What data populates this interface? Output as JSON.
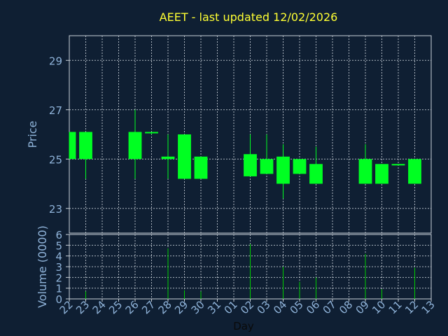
{
  "chart_data": [
    {
      "type": "candlestick",
      "title": "AEET - last updated 12/02/2026",
      "ylabel": "Price",
      "ylim": [
        22,
        30
      ],
      "yticks": [
        23,
        25,
        27,
        29
      ],
      "categories": [
        "22",
        "23",
        "24",
        "25",
        "26",
        "27",
        "28",
        "29",
        "30",
        "31",
        "01",
        "02",
        "03",
        "04",
        "05",
        "06",
        "07",
        "08",
        "09",
        "10",
        "11",
        "12",
        "13"
      ],
      "candles": [
        {
          "day": "22",
          "open": 25.0,
          "high": 26.1,
          "low": 25.0,
          "close": 26.1
        },
        {
          "day": "23",
          "open": 25.0,
          "high": 26.1,
          "low": 24.2,
          "close": 26.1
        },
        {
          "day": "26",
          "open": 25.0,
          "high": 27.0,
          "low": 24.2,
          "close": 26.1
        },
        {
          "day": "27",
          "open": 26.1,
          "high": 26.1,
          "low": 26.0,
          "close": 26.05
        },
        {
          "day": "28",
          "open": 25.0,
          "high": 26.0,
          "low": 24.2,
          "close": 25.1
        },
        {
          "day": "29",
          "open": 24.2,
          "high": 26.0,
          "low": 24.2,
          "close": 26.0
        },
        {
          "day": "30",
          "open": 24.2,
          "high": 25.1,
          "low": 24.2,
          "close": 25.1
        },
        {
          "day": "02",
          "open": 24.3,
          "high": 26.0,
          "low": 24.3,
          "close": 25.2
        },
        {
          "day": "03",
          "open": 24.4,
          "high": 26.0,
          "low": 24.4,
          "close": 25.0
        },
        {
          "day": "04",
          "open": 24.0,
          "high": 25.6,
          "low": 23.4,
          "close": 25.1
        },
        {
          "day": "05",
          "open": 24.4,
          "high": 25.0,
          "low": 24.4,
          "close": 25.0
        },
        {
          "day": "06",
          "open": 24.0,
          "high": 25.5,
          "low": 24.0,
          "close": 24.8
        },
        {
          "day": "09",
          "open": 24.0,
          "high": 25.6,
          "low": 24.0,
          "close": 25.0
        },
        {
          "day": "10",
          "open": 24.0,
          "high": 24.8,
          "low": 24.0,
          "close": 24.8
        },
        {
          "day": "11",
          "open": 24.8,
          "high": 24.8,
          "low": 24.75,
          "close": 24.78
        },
        {
          "day": "12",
          "open": 24.0,
          "high": 25.0,
          "low": 24.0,
          "close": 25.0
        }
      ]
    },
    {
      "type": "bar",
      "ylabel": "Volume (0000)",
      "xlabel": "Day",
      "ylim": [
        0,
        6
      ],
      "yticks": [
        0,
        1,
        2,
        3,
        4,
        5,
        6
      ],
      "categories": [
        "22",
        "23",
        "24",
        "25",
        "26",
        "27",
        "28",
        "29",
        "30",
        "31",
        "01",
        "02",
        "03",
        "04",
        "05",
        "06",
        "07",
        "08",
        "09",
        "10",
        "11",
        "12",
        "13"
      ],
      "values": [
        0,
        0.7,
        0,
        0,
        0,
        0,
        4.7,
        0.8,
        0.7,
        0,
        0,
        5.1,
        0,
        3.0,
        1.6,
        2.0,
        0,
        0,
        4.2,
        0.9,
        0,
        2.9,
        0
      ]
    }
  ],
  "colors": {
    "candle": "#00ff22",
    "volume": "#00cc00",
    "grid": "#c8d0d8",
    "title": "#ffff33",
    "axis_text": "#8fb3d9",
    "background": "#0f1f33"
  }
}
